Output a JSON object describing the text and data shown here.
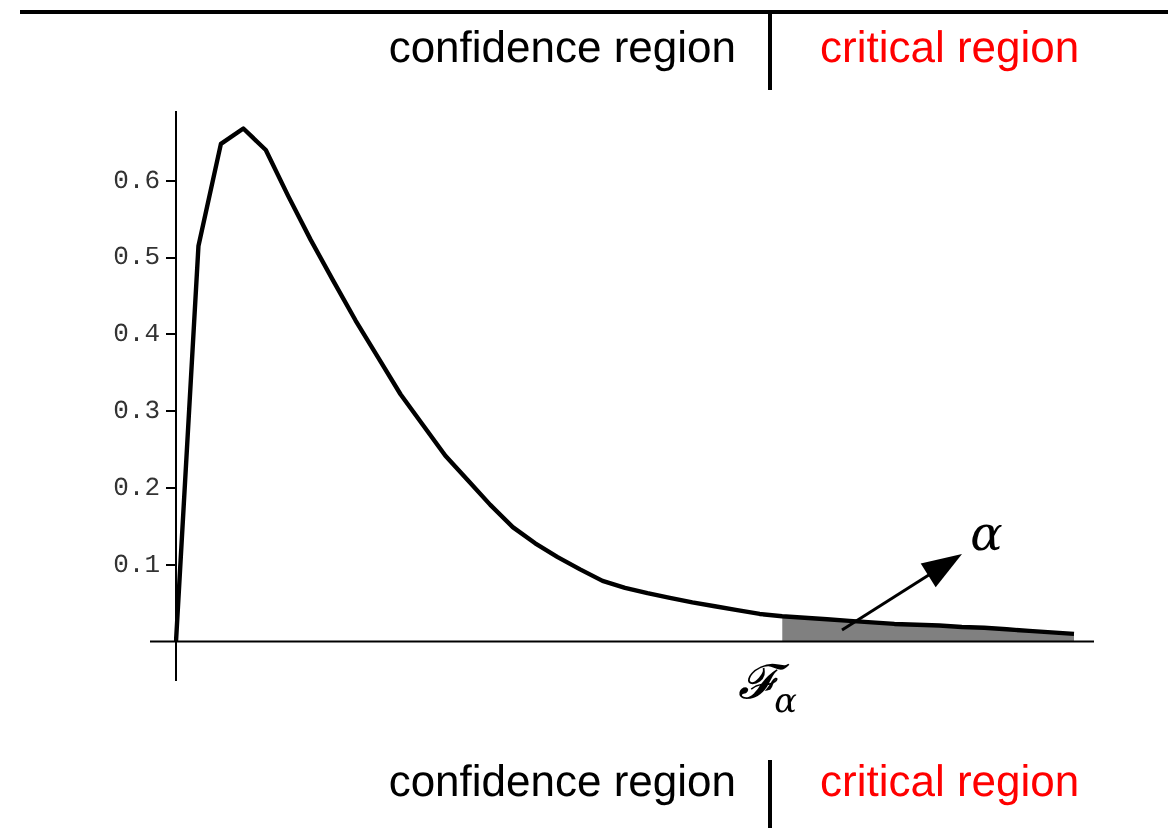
{
  "chart_data": {
    "type": "line",
    "tick_labels": "y",
    "grid": false,
    "legend": false,
    "marker": "none",
    "categories": [
      null,
      null,
      null,
      null,
      null,
      null,
      null,
      null,
      null,
      null,
      null,
      null,
      null,
      null,
      null,
      null,
      null,
      null,
      null,
      null,
      null,
      null,
      null,
      null,
      null,
      null,
      null,
      null,
      null,
      null,
      null,
      null,
      null,
      null,
      null,
      null,
      null,
      null,
      null,
      null,
      null
    ],
    "ylim": [
      -0.05,
      0.69
    ],
    "yticks": [
      0.1,
      0.2,
      0.3,
      0.4,
      0.5,
      0.6
    ],
    "series": [
      {
        "color": "#808080",
        "type": "area",
        "values": [
          null,
          null,
          null,
          null,
          null,
          null,
          null,
          null,
          null,
          null,
          null,
          null,
          null,
          null,
          null,
          null,
          null,
          null,
          null,
          null,
          null,
          null,
          null,
          null,
          null,
          null,
          null,
          0.033,
          0.031,
          0.029,
          0.027,
          0.025,
          0.023,
          0.022,
          0.021,
          0.019,
          0.018,
          0.016,
          0.014,
          0.012,
          0.01
        ]
      },
      {
        "color": "#000000",
        "values": [
          0,
          0.515,
          0.648,
          0.668,
          0.64,
          0.58,
          0.523,
          0.47,
          0.418,
          0.37,
          0.322,
          0.282,
          0.242,
          0.21,
          0.178,
          0.149,
          0.128,
          0.11,
          0.094,
          0.079,
          0.07,
          0.063,
          0.057,
          0.051,
          0.046,
          0.041,
          0.036,
          0.033,
          0.031,
          0.029,
          0.027,
          0.025,
          0.023,
          0.022,
          0.021,
          0.019,
          0.018,
          0.016,
          0.014,
          0.012,
          0.01
        ]
      }
    ],
    "annotations": [
      "confidence region",
      "critical region",
      "confidence region",
      "critical region",
      "𝓕$_{α}$",
      "α"
    ]
  }
}
